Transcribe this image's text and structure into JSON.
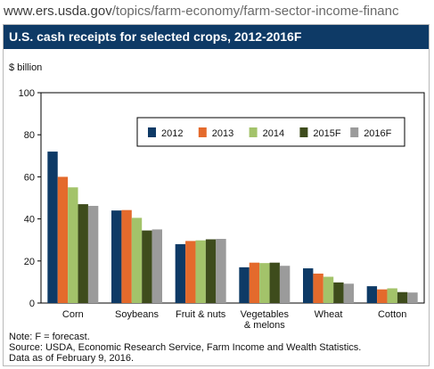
{
  "browser": {
    "url_host": "www.ers.usda.gov",
    "url_path": "/topics/farm-economy/farm-sector-income-financ"
  },
  "chart_data": {
    "type": "bar",
    "title": "U.S. cash receipts for selected crops, 2012-2016F",
    "ylabel": "$ billion",
    "ylim": [
      0,
      100
    ],
    "yticks": [
      0,
      20,
      40,
      60,
      80,
      100
    ],
    "grid": false,
    "legend_position": "top-right",
    "categories": [
      "Corn",
      "Soybeans",
      "Fruit & nuts",
      "Vegetables\n& melons",
      "Wheat",
      "Cotton"
    ],
    "series": [
      {
        "name": "2012",
        "color": "#0e3a66",
        "values": [
          72,
          44,
          28,
          17,
          16.5,
          8
        ]
      },
      {
        "name": "2013",
        "color": "#e46a2c",
        "values": [
          60,
          44.2,
          29.5,
          19.2,
          14,
          6.5
        ]
      },
      {
        "name": "2014",
        "color": "#a3c36a",
        "values": [
          55,
          40.5,
          29.8,
          19,
          12.5,
          7
        ]
      },
      {
        "name": "2015F",
        "color": "#3e4c1c",
        "values": [
          47,
          34.5,
          30.3,
          19.2,
          9.8,
          5.2
        ]
      },
      {
        "name": "2016F",
        "color": "#9b9b9b",
        "values": [
          46.2,
          35,
          30.5,
          17.7,
          9.2,
          5
        ]
      }
    ]
  },
  "notes": [
    "Note: F = forecast.",
    "Source: USDA, Economic Research Service, Farm Income and Wealth Statistics.",
    "Data as of February 9, 2016."
  ]
}
